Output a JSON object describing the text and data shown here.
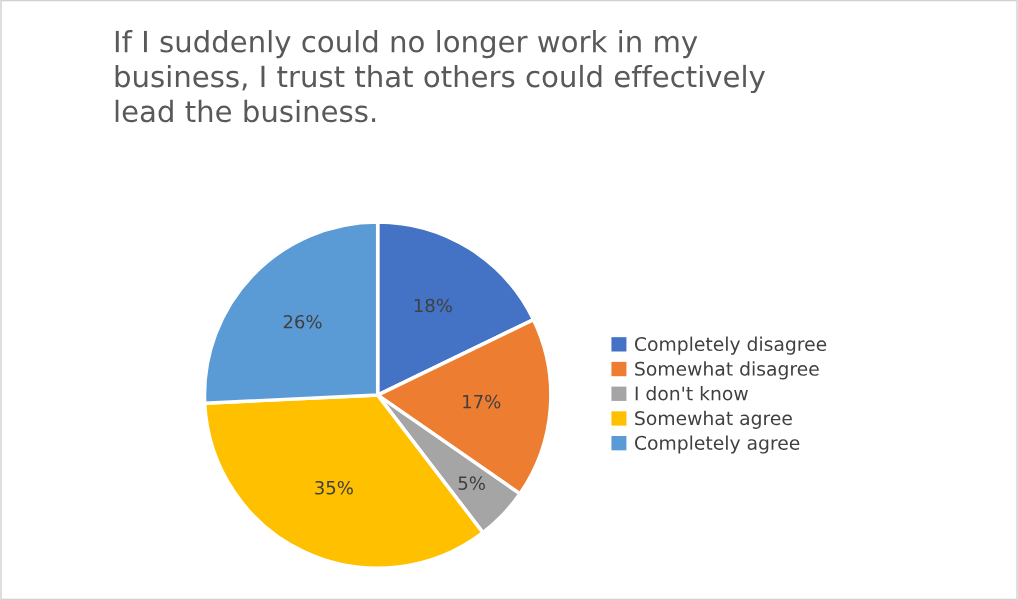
{
  "chart_data": {
    "type": "pie",
    "title": "If I suddenly could no longer work in my\nbusiness, I trust that others could effectively\nlead the business.",
    "categories": [
      "Completely disagree",
      "Somewhat disagree",
      "I don't know",
      "Somewhat agree",
      "Completely agree"
    ],
    "values": [
      18,
      17,
      5,
      35,
      26
    ],
    "value_labels": [
      "18%",
      "17%",
      "5%",
      "35%",
      "26%"
    ],
    "colors": [
      "#4472c4",
      "#ed7d31",
      "#a5a5a5",
      "#ffc000",
      "#5b9bd5"
    ],
    "legend": "right"
  }
}
